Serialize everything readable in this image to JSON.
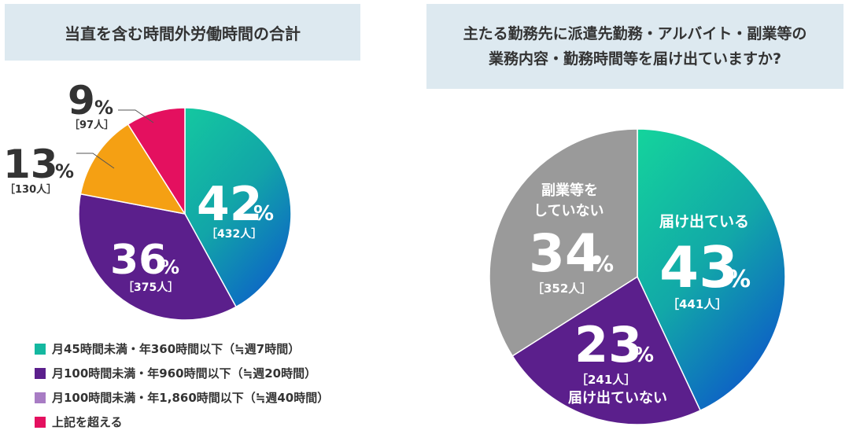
{
  "chart_data": [
    {
      "type": "pie",
      "title": "当直を含む時間外労働時間の合計",
      "slices": [
        {
          "label": "月45時間未満・年360時間以下（≒週7時間）",
          "percent": 42,
          "count": "［432人］",
          "color": "#14b8a0"
        },
        {
          "label": "月100時間未満・年960時間以下（≒週20時間）",
          "percent": 36,
          "count": "［375人］",
          "color": "#5b1f8c"
        },
        {
          "label": "月100時間未満・年1,860時間以下（≒週40時間）",
          "percent": 13,
          "count": "［130人］",
          "color": "#f5a013"
        },
        {
          "label": "上記を超える",
          "percent": 9,
          "count": "［97人］",
          "color": "#e4105f"
        }
      ],
      "legend": [
        {
          "text": "月45時間未満・年360時間以下（≒週7時間）",
          "color": "#14b8a0"
        },
        {
          "text": "月100時間未満・年960時間以下（≒週20時間）",
          "color": "#5b1f8c"
        },
        {
          "text": "月100時間未満・年1,860時間以下（≒週40時間）",
          "color": "#a87cc4"
        },
        {
          "text": "上記を超える",
          "color": "#e4105f"
        }
      ]
    },
    {
      "type": "pie",
      "title": "主たる勤務先に派遣先勤務・アルバイト・副業等の業務内容・勤務時間等を届け出ていますか?",
      "title_lines": [
        "主たる勤務先に派遣先勤務・アルバイト・副業等の",
        "業務内容・勤務時間等を届け出ていますか?"
      ],
      "slices": [
        {
          "label": "届け出ている",
          "percent": 43,
          "count": "［441人］",
          "color": "#14c8a0"
        },
        {
          "label": "届け出ていない",
          "percent": 23,
          "count": "［241人］",
          "color": "#5b1f8c"
        },
        {
          "label": "副業等を していない",
          "label_lines": [
            "副業等を",
            "していない"
          ],
          "percent": 34,
          "count": "［352人］",
          "color": "#9a9a9a"
        }
      ]
    }
  ],
  "pct_sign": "%"
}
